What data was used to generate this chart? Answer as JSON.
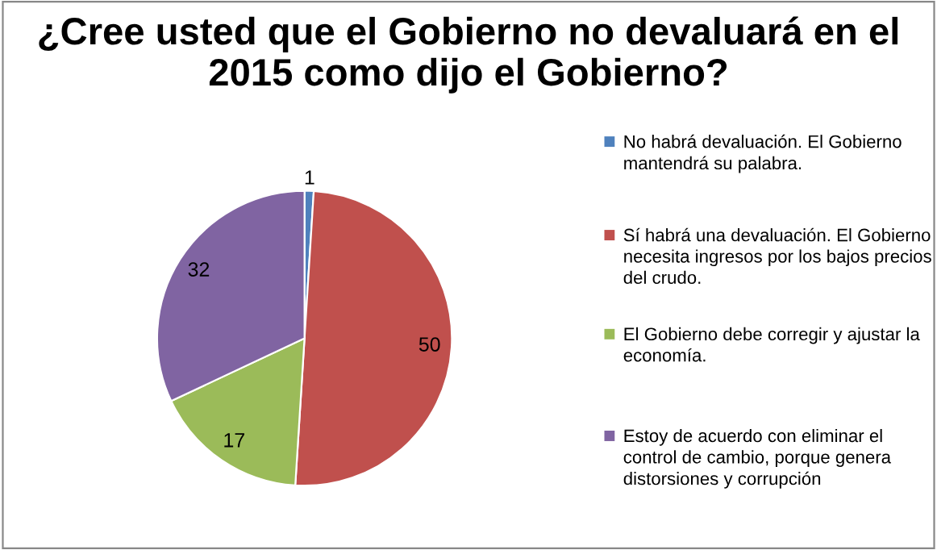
{
  "chart_data": {
    "type": "pie",
    "title": "¿Cree usted que el Gobierno no devaluará en el 2015 como dijo el Gobierno?",
    "categories": [
      "No habrá devaluación. El Gobierno mantendrá su palabra.",
      "Sí habrá una devaluación. El Gobierno necesita ingresos por los bajos precios del crudo.",
      "El Gobierno debe corregir y ajustar la economía.",
      "Estoy de acuerdo con eliminar el control de cambio, porque genera distorsiones y corrupción"
    ],
    "values": [
      1,
      50,
      17,
      32
    ],
    "colors": [
      "#4f81bd",
      "#c0504d",
      "#9bbb59",
      "#8064a2"
    ],
    "data_labels": true,
    "legend": "right"
  }
}
